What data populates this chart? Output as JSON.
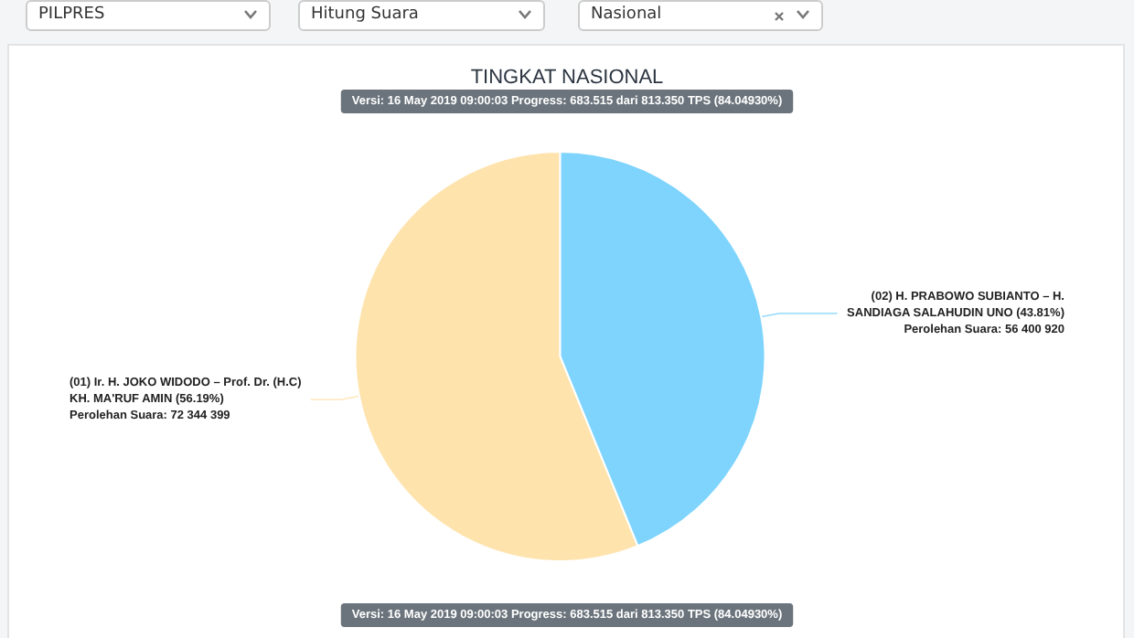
{
  "chart_data": {
    "type": "pie",
    "title": "TINGKAT NASIONAL",
    "subtitle": "Versi: 16 May 2019 09:00:03 Progress: 683.515 dari 813.350 TPS (84.04930%)",
    "categories": [
      "(01) Ir. H. JOKO WIDODO – Prof. Dr. (H.C)\nKH. MA'RUF AMIN",
      "(02) H. PRABOWO SUBIANTO – H.\nSANDIAGA SALAHUDIN UNO"
    ],
    "values": [
      72344399,
      56400920
    ],
    "value_labels": [
      "(56.19%)\nPerolehan Suara: 72 344 399",
      "(43.81%)\nPerolehan Suara: 56 400 920"
    ],
    "colors": [
      "#fee3ad",
      "#7fd4fd"
    ],
    "annotations": [
      "PILPRES",
      "Hitung Suara",
      "Nasional",
      "Versi: 16 May 2019 09:00:03 Progress: 683.515 dari 813.350 TPS (84.04930%)"
    ],
    "legend": false
  }
}
